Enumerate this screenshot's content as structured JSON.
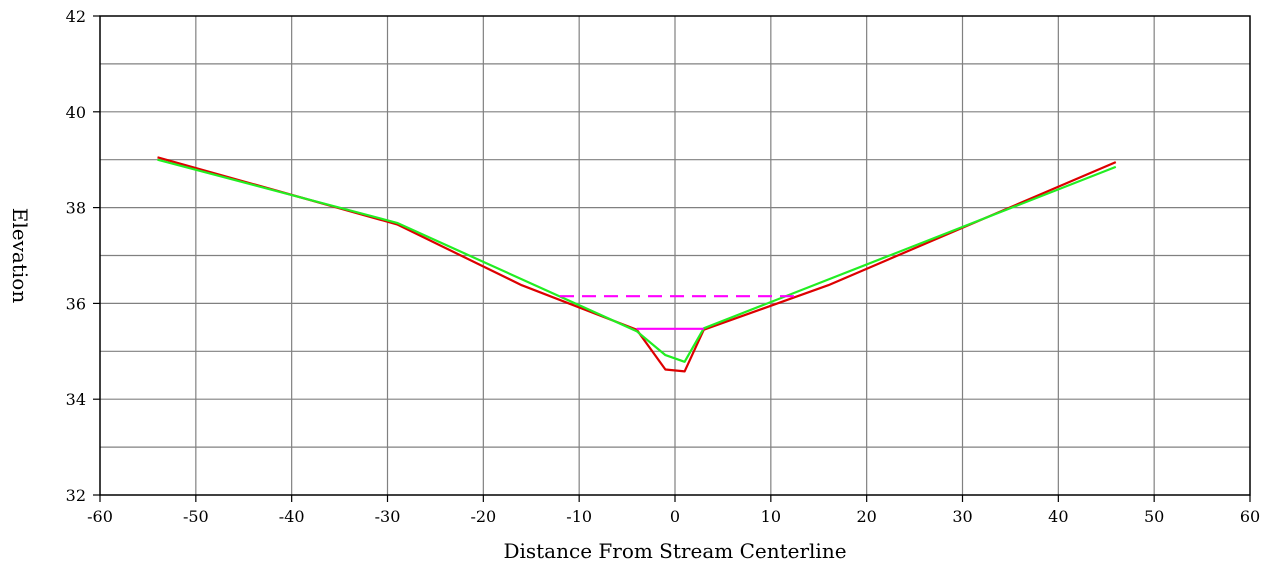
{
  "chart_data": {
    "type": "line",
    "title": "",
    "xlabel": "Distance From Stream Centerline",
    "ylabel": "Elevation",
    "xlim": [
      -60,
      60
    ],
    "ylim": [
      32,
      42
    ],
    "x_ticks": [
      -60,
      -50,
      -40,
      -30,
      -20,
      -10,
      0,
      10,
      20,
      30,
      40,
      50,
      60
    ],
    "y_ticks": [
      32,
      34,
      36,
      38,
      40,
      42
    ],
    "x_tick_labels": [
      "-60",
      "-50",
      "-40",
      "-30",
      "-20",
      "-10",
      "0",
      "10",
      "20",
      "30",
      "40",
      "50",
      "60"
    ],
    "y_tick_labels": [
      "32",
      "34",
      "36",
      "38",
      "40",
      "42"
    ],
    "x_minor_step": 5,
    "y_minor_step": 1,
    "grid": true,
    "legend": "none",
    "series": [
      {
        "color": "#dd0000",
        "dash": false,
        "points": [
          [
            -54,
            39.05
          ],
          [
            -29,
            37.65
          ],
          [
            -16,
            36.38
          ],
          [
            -4,
            35.45
          ],
          [
            -1,
            34.62
          ],
          [
            1,
            34.58
          ],
          [
            3,
            35.45
          ],
          [
            16,
            36.38
          ],
          [
            46,
            38.95
          ]
        ]
      },
      {
        "color": "#22ee22",
        "dash": false,
        "points": [
          [
            -54,
            39.0
          ],
          [
            -29,
            37.68
          ],
          [
            -4,
            35.42
          ],
          [
            -1,
            34.92
          ],
          [
            1,
            34.78
          ],
          [
            3,
            35.48
          ],
          [
            46,
            38.85
          ]
        ]
      },
      {
        "color": "#ff00ff",
        "dash": true,
        "points": [
          [
            -12,
            36.15
          ],
          [
            12.5,
            36.15
          ]
        ]
      },
      {
        "color": "#ff00ff",
        "dash": false,
        "points": [
          [
            -4,
            35.47
          ],
          [
            3,
            35.47
          ]
        ]
      }
    ]
  }
}
